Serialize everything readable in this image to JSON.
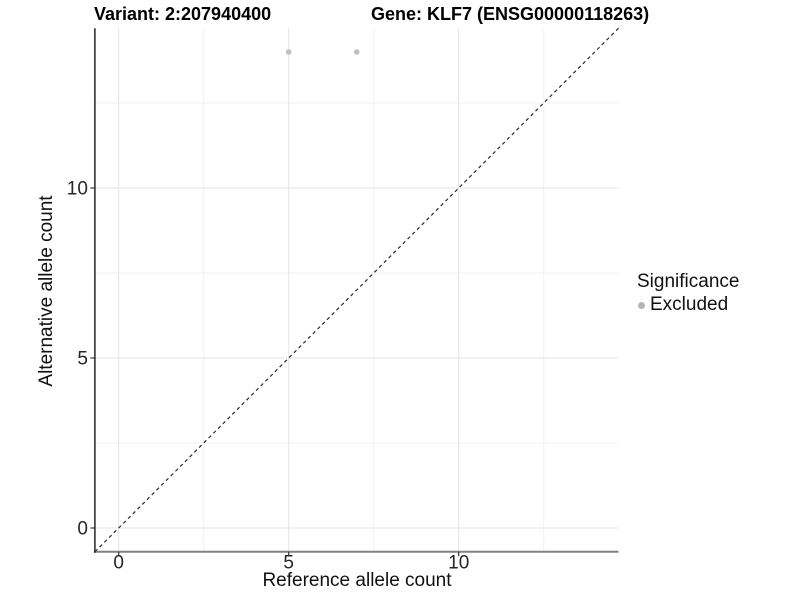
{
  "titles": {
    "variant": "Variant: 2:207940400",
    "gene": "Gene: KLF7 (ENSG00000118263)"
  },
  "chart_data": {
    "type": "scatter",
    "title": "Variant: 2:207940400   Gene: KLF7 (ENSG00000118263)",
    "xlabel": "Reference allele count",
    "ylabel": "Alternative allele count",
    "xlim": [
      -0.7,
      14.7
    ],
    "ylim": [
      -0.7,
      14.7
    ],
    "x_ticks": [
      0,
      5,
      10
    ],
    "y_ticks": [
      0,
      5,
      10
    ],
    "x_minor_ticks": [
      2.5,
      7.5,
      12.5
    ],
    "y_minor_ticks": [
      2.5,
      7.5,
      12.5
    ],
    "grid": "on",
    "legend_position": "right",
    "series": [
      {
        "name": "Excluded",
        "color": "#bfbfbf",
        "points": [
          {
            "x": 5,
            "y": 14
          },
          {
            "x": 7,
            "y": 14
          }
        ]
      }
    ],
    "reference_line": {
      "kind": "identity y=x",
      "style": "dashed",
      "x1": -0.7,
      "y1": -0.7,
      "x2": 14.7,
      "y2": 14.7,
      "color": "#2a2a2a"
    }
  },
  "legend": {
    "title": "Significance",
    "items": [
      {
        "label": "Excluded",
        "color": "#b5b5b5"
      }
    ]
  },
  "colors": {
    "background": "#ffffff",
    "grid_major": "#e6e6e6",
    "grid_minor": "#f1f1f1",
    "axis_line_x": "#808080",
    "axis_line_y": "#141414",
    "tick_mark": "#333333",
    "tick_label": "#262626",
    "point": "#bfbfbf"
  }
}
